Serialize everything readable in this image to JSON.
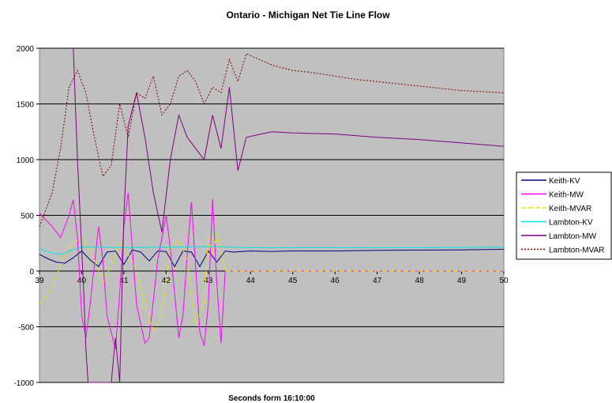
{
  "chart_data": {
    "type": "line",
    "title": "Ontario - Michigan Net Tie Line Flow",
    "xlabel": "Seconds form 16:10:00",
    "ylabel": "",
    "xlim": [
      39,
      50
    ],
    "ylim": [
      -1000,
      2000
    ],
    "xticks": [
      39,
      40,
      41,
      42,
      43,
      44,
      45,
      46,
      47,
      48,
      49,
      50
    ],
    "xtick_labels": [
      "39",
      "40",
      "41",
      "42",
      "43",
      "44",
      "45",
      "46",
      "47",
      "48",
      "49",
      "50"
    ],
    "yticks": [
      -1000,
      -500,
      0,
      500,
      1000,
      1500,
      2000
    ],
    "ytick_labels": [
      "-1000",
      "-500",
      "0",
      "500",
      "1000",
      "1500",
      "2000"
    ],
    "grid": true,
    "plot_background": "#c0c0c0",
    "legend_position": "right",
    "series": [
      {
        "name": "Keith-KV",
        "color": "#000080",
        "dash": "solid",
        "x": [
          39.0,
          39.2,
          39.4,
          39.6,
          39.8,
          40.0,
          40.2,
          40.4,
          40.6,
          40.8,
          41.0,
          41.2,
          41.4,
          41.6,
          41.8,
          42.0,
          42.2,
          42.4,
          42.6,
          42.8,
          43.0,
          43.2,
          43.4,
          43.6,
          44.0,
          44.5,
          45.0,
          46.0,
          47.0,
          48.0,
          49.0,
          50.0
        ],
        "y": [
          150,
          110,
          80,
          70,
          120,
          180,
          100,
          40,
          170,
          180,
          60,
          190,
          170,
          90,
          180,
          175,
          40,
          180,
          170,
          40,
          180,
          80,
          180,
          170,
          180,
          175,
          180,
          180,
          185,
          188,
          190,
          195
        ]
      },
      {
        "name": "Keith-MW",
        "color": "#ff00ff",
        "dash": "solid",
        "x": [
          39.0,
          39.3,
          39.5,
          39.7,
          39.8,
          39.9,
          40.0,
          40.1,
          40.2,
          40.4,
          40.5,
          40.6,
          40.8,
          40.9,
          41.0,
          41.1,
          41.3,
          41.5,
          41.6,
          41.8,
          42.0,
          42.1,
          42.3,
          42.4,
          42.5,
          42.6,
          42.8,
          42.9,
          43.0,
          43.1,
          43.2,
          43.3,
          43.4,
          44.0,
          45.0,
          46.0,
          47.0,
          48.0,
          49.0,
          50.0
        ],
        "y": [
          520,
          400,
          300,
          500,
          640,
          300,
          -400,
          -600,
          -300,
          400,
          100,
          -400,
          -700,
          -200,
          400,
          700,
          -300,
          -650,
          -600,
          100,
          500,
          200,
          -600,
          -400,
          150,
          620,
          -550,
          -670,
          -300,
          650,
          -100,
          -650,
          0,
          0,
          0,
          0,
          0,
          0,
          0,
          0
        ]
      },
      {
        "name": "Keith-MVAR",
        "color": "#e6e600",
        "dash": "dash",
        "x": [
          39.0,
          39.3,
          39.6,
          39.8,
          40.0,
          40.1,
          40.3,
          40.5,
          40.7,
          40.9,
          41.1,
          41.3,
          41.5,
          41.7,
          41.9,
          42.1,
          42.3,
          42.5,
          42.7,
          42.9,
          43.0,
          43.1,
          43.2,
          43.4,
          44.0,
          45.0,
          46.0,
          47.0,
          48.0,
          49.0,
          50.0
        ],
        "y": [
          -300,
          -150,
          150,
          250,
          300,
          250,
          100,
          -100,
          50,
          250,
          150,
          0,
          -300,
          -550,
          -400,
          200,
          280,
          100,
          -480,
          -300,
          320,
          150,
          340,
          0,
          0,
          0,
          0,
          0,
          0,
          0,
          0
        ]
      },
      {
        "name": "Lambton-KV",
        "color": "#00e5e5",
        "dash": "solid",
        "x": [
          39.0,
          39.3,
          39.5,
          39.8,
          40.0,
          40.5,
          41.0,
          42.0,
          43.0,
          44.0,
          45.0,
          46.0,
          47.0,
          48.0,
          49.0,
          50.0
        ],
        "y": [
          200,
          160,
          150,
          190,
          215,
          215,
          210,
          215,
          220,
          210,
          210,
          210,
          210,
          210,
          212,
          215
        ]
      },
      {
        "name": "Lambton-MW",
        "color": "#800080",
        "dash": "solid",
        "x": [
          39.8,
          39.9,
          40.0,
          40.05,
          40.1,
          40.15,
          40.3,
          40.5,
          40.7,
          40.8,
          40.9,
          41.0,
          41.1,
          41.3,
          41.5,
          41.7,
          41.9,
          42.1,
          42.3,
          42.5,
          42.7,
          42.9,
          43.1,
          43.3,
          43.5,
          43.7,
          43.9,
          44.5,
          45.0,
          46.0,
          47.0,
          48.0,
          49.0,
          50.0
        ],
        "y": [
          2000,
          1000,
          200,
          -200,
          -700,
          -1000,
          -1000,
          -1000,
          -1000,
          -600,
          -1000,
          500,
          1300,
          1600,
          1200,
          700,
          350,
          1000,
          1400,
          1200,
          1100,
          1000,
          1400,
          1100,
          1650,
          900,
          1200,
          1250,
          1240,
          1230,
          1200,
          1180,
          1150,
          1120
        ]
      },
      {
        "name": "Lambton-MVAR",
        "color": "#800000",
        "dash": "dot",
        "x": [
          39.0,
          39.3,
          39.5,
          39.7,
          39.9,
          40.1,
          40.3,
          40.5,
          40.7,
          40.9,
          41.1,
          41.3,
          41.5,
          41.7,
          41.9,
          42.1,
          42.3,
          42.5,
          42.7,
          42.9,
          43.1,
          43.3,
          43.5,
          43.7,
          43.9,
          44.2,
          44.5,
          45.0,
          45.5,
          46.0,
          46.5,
          47.0,
          47.5,
          48.0,
          48.5,
          49.0,
          49.5,
          50.0
        ],
        "y": [
          400,
          700,
          1100,
          1650,
          1800,
          1600,
          1200,
          850,
          950,
          1500,
          1200,
          1600,
          1550,
          1750,
          1400,
          1500,
          1750,
          1800,
          1700,
          1500,
          1650,
          1600,
          1900,
          1700,
          1950,
          1900,
          1850,
          1800,
          1780,
          1750,
          1720,
          1700,
          1680,
          1660,
          1640,
          1620,
          1610,
          1600
        ]
      }
    ]
  }
}
